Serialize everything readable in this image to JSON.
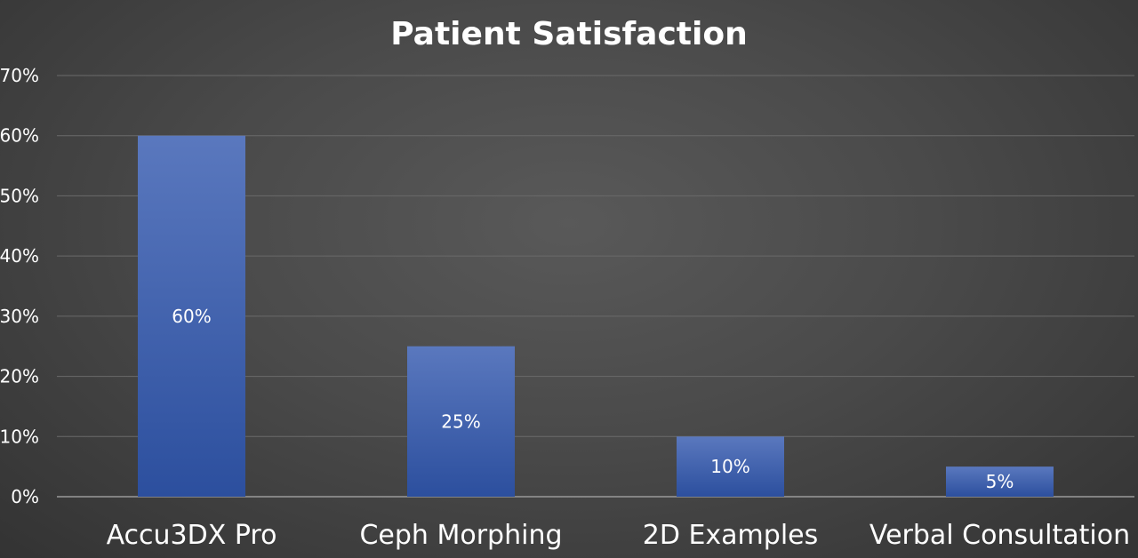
{
  "chart_data": {
    "type": "bar",
    "title": "Patient Satisfaction",
    "xlabel": "",
    "ylabel": "",
    "categories": [
      "Accu3DX Pro",
      "Ceph Morphing",
      "2D Examples",
      "Verbal Consultation"
    ],
    "values": [
      60,
      25,
      10,
      5
    ],
    "data_labels": [
      "60%",
      "25%",
      "10%",
      "5%"
    ],
    "ylim": [
      0,
      70
    ],
    "yticks": [
      0,
      10,
      20,
      30,
      40,
      50,
      60,
      70
    ],
    "ytick_labels": [
      "0%",
      "10%",
      "20%",
      "30%",
      "40%",
      "50%",
      "60%",
      "70%"
    ],
    "grid": true,
    "legend": "none",
    "colors": {
      "bar_top": "#5a78be",
      "bar_bottom": "#2c4f9e",
      "background": "#4a4a4a",
      "text": "#ffffff"
    }
  }
}
